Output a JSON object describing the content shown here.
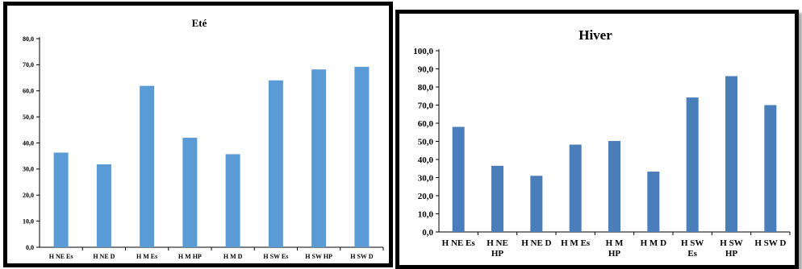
{
  "chart_data": [
    {
      "type": "bar",
      "title": "Eté",
      "categories": [
        "H NE Es",
        "H NE D",
        "H M Es",
        "H M HP",
        "H M D",
        "H SW Es",
        "H SW HP",
        "H SW D"
      ],
      "values": [
        36.3,
        31.8,
        61.9,
        42.0,
        35.7,
        64.0,
        68.2,
        69.2
      ],
      "ylim": [
        0,
        80
      ],
      "yticks": [
        "0,0",
        "10,0",
        "20,0",
        "30,0",
        "40,0",
        "50,0",
        "60,0",
        "70,0",
        "80,0"
      ],
      "grid": false,
      "colors": {
        "bar": "#5B9BD5"
      }
    },
    {
      "type": "bar",
      "title": "Hiver",
      "categories": [
        "H NE Es",
        "H NE HP",
        "H NE D",
        "H M Es",
        "H M HP",
        "H M D",
        "H SW Es",
        "H SW HP",
        "H SW D"
      ],
      "values": [
        58.0,
        36.5,
        31.0,
        48.2,
        50.2,
        33.3,
        74.2,
        86.0,
        70.0
      ],
      "ylim": [
        0,
        100
      ],
      "yticks": [
        "0,0",
        "10,0",
        "20,0",
        "30,0",
        "40,0",
        "50,0",
        "60,0",
        "70,0",
        "80,0",
        "90,0",
        "100,0"
      ],
      "grid": false,
      "colors": {
        "bar": "#4A7EBB"
      }
    }
  ]
}
